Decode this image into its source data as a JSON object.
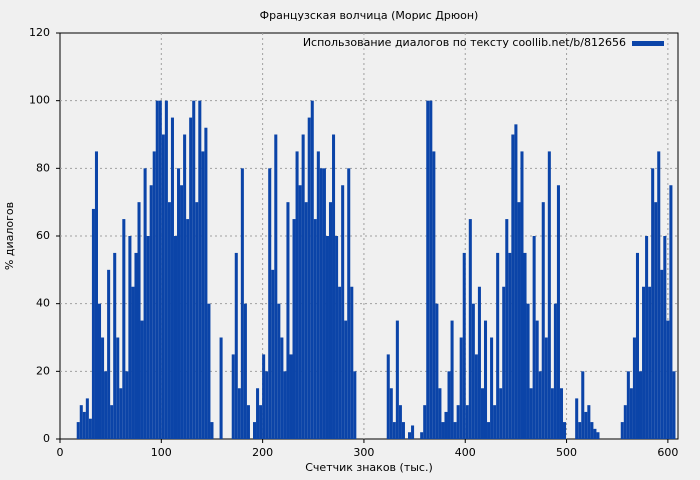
{
  "chart_data": {
    "type": "bar",
    "title": "Французская волчица (Морис Дрюон)",
    "x_label": "Счетчик знаков (тыс.)",
    "y_label": "% диалогов",
    "x": [
      18,
      21,
      24,
      27,
      30,
      33,
      36,
      39,
      42,
      45,
      48,
      51,
      54,
      57,
      60,
      63,
      66,
      69,
      72,
      75,
      78,
      81,
      84,
      87,
      90,
      93,
      96,
      99,
      102,
      105,
      108,
      111,
      114,
      117,
      120,
      123,
      126,
      129,
      132,
      135,
      138,
      141,
      144,
      147,
      150,
      153,
      156,
      159,
      162,
      165,
      168,
      171,
      174,
      177,
      180,
      183,
      186,
      189,
      192,
      195,
      198,
      201,
      204,
      207,
      210,
      213,
      216,
      219,
      222,
      225,
      228,
      231,
      234,
      237,
      240,
      243,
      246,
      249,
      252,
      255,
      258,
      261,
      264,
      267,
      270,
      273,
      276,
      279,
      282,
      285,
      288,
      291,
      294,
      297,
      300,
      303,
      306,
      309,
      312,
      315,
      318,
      321,
      324,
      327,
      330,
      333,
      336,
      339,
      342,
      345,
      348,
      351,
      354,
      357,
      360,
      363,
      366,
      369,
      372,
      375,
      378,
      381,
      384,
      387,
      390,
      393,
      396,
      399,
      402,
      405,
      408,
      411,
      414,
      417,
      420,
      423,
      426,
      429,
      432,
      435,
      438,
      441,
      444,
      447,
      450,
      453,
      456,
      459,
      462,
      465,
      468,
      471,
      474,
      477,
      480,
      483,
      486,
      489,
      492,
      495,
      498,
      501,
      504,
      507,
      510,
      513,
      516,
      519,
      522,
      525,
      528,
      531,
      534,
      537,
      540,
      543,
      546,
      549,
      552,
      555,
      558,
      561,
      564,
      567,
      570,
      573,
      576,
      579,
      582,
      585,
      588,
      591,
      594,
      597,
      600,
      603,
      606
    ],
    "series": [
      {
        "name": "Использование диалогов по тексту coollib.net/b/812656",
        "color": "#0b44a8",
        "values": [
          5,
          10,
          8,
          12,
          6,
          68,
          85,
          40,
          30,
          20,
          50,
          10,
          55,
          30,
          15,
          65,
          20,
          60,
          45,
          55,
          70,
          35,
          80,
          60,
          75,
          85,
          100,
          100,
          90,
          100,
          70,
          95,
          60,
          80,
          75,
          90,
          65,
          95,
          100,
          70,
          100,
          85,
          92,
          40,
          5,
          0,
          0,
          30,
          0,
          0,
          0,
          25,
          55,
          15,
          80,
          40,
          10,
          0,
          5,
          15,
          10,
          25,
          20,
          80,
          50,
          90,
          40,
          30,
          20,
          70,
          25,
          65,
          85,
          75,
          90,
          70,
          95,
          100,
          65,
          85,
          80,
          80,
          60,
          70,
          90,
          60,
          45,
          75,
          35,
          80,
          45,
          20,
          0,
          0,
          0,
          0,
          0,
          0,
          0,
          0,
          0,
          0,
          25,
          15,
          5,
          35,
          10,
          5,
          0,
          2,
          4,
          0,
          0,
          2,
          10,
          100,
          100,
          85,
          40,
          15,
          5,
          8,
          20,
          35,
          5,
          10,
          30,
          55,
          10,
          65,
          40,
          25,
          45,
          15,
          35,
          5,
          30,
          10,
          55,
          15,
          45,
          65,
          55,
          90,
          93,
          70,
          85,
          55,
          40,
          15,
          60,
          35,
          20,
          70,
          30,
          85,
          15,
          40,
          75,
          15,
          5,
          0,
          0,
          0,
          12,
          5,
          20,
          8,
          10,
          5,
          3,
          2,
          0,
          0,
          0,
          0,
          0,
          0,
          0,
          5,
          10,
          20,
          15,
          30,
          55,
          20,
          45,
          60,
          45,
          80,
          70,
          85,
          50,
          60,
          35,
          75,
          20
        ]
      }
    ],
    "xlim": [
      0,
      610
    ],
    "ylim": [
      0,
      120
    ],
    "xticks": [
      0,
      100,
      200,
      300,
      400,
      500,
      600
    ],
    "yticks": [
      0,
      20,
      40,
      60,
      80,
      100,
      120
    ],
    "grid": true,
    "legend": "top-right"
  }
}
